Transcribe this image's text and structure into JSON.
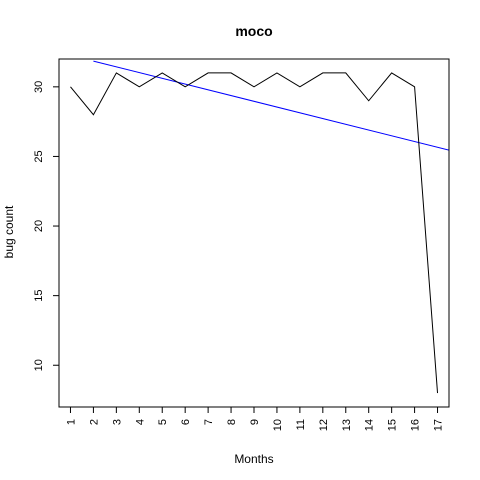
{
  "chart_data": {
    "type": "line",
    "title": "moco",
    "xlabel": "Months",
    "ylabel": "bug count",
    "x": [
      1,
      2,
      3,
      4,
      5,
      6,
      7,
      8,
      9,
      10,
      11,
      12,
      13,
      14,
      15,
      16,
      17
    ],
    "xlim": [
      0.5,
      17.5
    ],
    "ylim": [
      7,
      32
    ],
    "x_ticks": [
      "1",
      "2",
      "3",
      "4",
      "5",
      "6",
      "7",
      "8",
      "9",
      "10",
      "11",
      "12",
      "13",
      "14",
      "15",
      "16",
      "17"
    ],
    "y_ticks": [
      10,
      15,
      20,
      25,
      30
    ],
    "series": [
      {
        "values": [
          30,
          28,
          31,
          30,
          31,
          30,
          31,
          31,
          30,
          31,
          30,
          31,
          31,
          29,
          31,
          30,
          8
        ],
        "color": "#000000"
      }
    ],
    "trend_line": {
      "color": "#0000ff",
      "points": [
        [
          2,
          31.85
        ],
        [
          17.5,
          25.45
        ]
      ]
    },
    "grid": false
  }
}
